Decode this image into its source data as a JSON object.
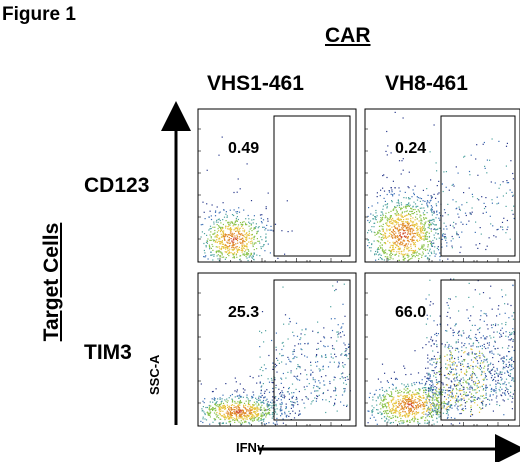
{
  "figure_label": "Figure 1",
  "car_label": "CAR",
  "target_cells_label": "Target Cells",
  "chart_data": {
    "type": "scatter",
    "columns": [
      "VHS1-461",
      "VH8-461"
    ],
    "rows": [
      "CD123",
      "TIM3"
    ],
    "xlabel": "IFNγ",
    "ylabel": "SSC-A",
    "panels": [
      {
        "row": "CD123",
        "column": "VHS1-461",
        "gate_percent": "0.49"
      },
      {
        "row": "CD123",
        "column": "VH8-461",
        "gate_percent": "0.24"
      },
      {
        "row": "TIM3",
        "column": "VHS1-461",
        "gate_percent": "25.3"
      },
      {
        "row": "TIM3",
        "column": "VH8-461",
        "gate_percent": "66.0"
      }
    ],
    "density_colors": [
      "#2a3a8c",
      "#3b6fb5",
      "#4fa3a0",
      "#8ac24a",
      "#e6c23a",
      "#e08a2a",
      "#d04a2a"
    ]
  }
}
